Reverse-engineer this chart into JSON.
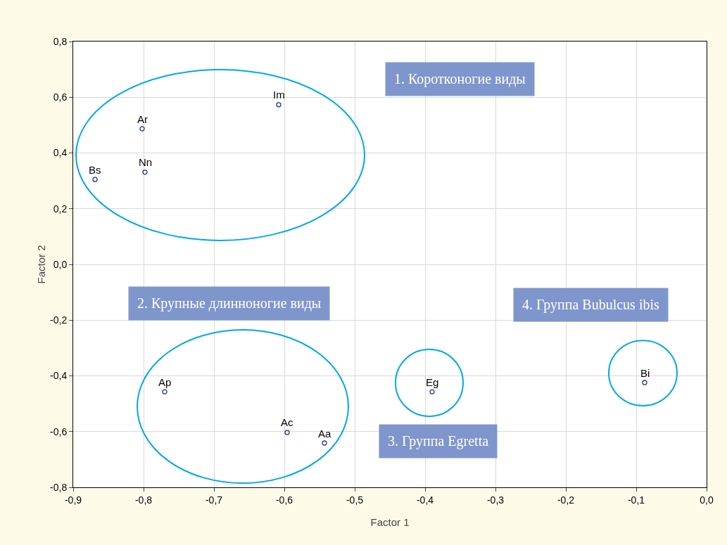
{
  "chart_data": {
    "type": "scatter",
    "xlabel": "Factor 1",
    "ylabel": "Factor 2",
    "series": [
      {
        "color": "#1f3c8c",
        "x": [
          -0.608,
          -0.802,
          -0.798,
          -0.869,
          -0.77,
          -0.596,
          -0.543,
          -0.39,
          -0.088
        ],
        "values": [
          0.573,
          0.487,
          0.331,
          0.305,
          -0.457,
          -0.603,
          -0.641,
          -0.457,
          -0.424
        ]
      }
    ],
    "marker": "circle",
    "grid": true,
    "xlim": [
      -0.9,
      0
    ],
    "ylim": [
      -0.8,
      0.8
    ],
    "xticks": [
      {
        "value": -0.9,
        "label": "-0,9"
      },
      {
        "value": -0.8,
        "label": "-0,8"
      },
      {
        "value": -0.7,
        "label": "-0,7"
      },
      {
        "value": -0.6,
        "label": "-0,6"
      },
      {
        "value": -0.5,
        "label": "-0,5"
      },
      {
        "value": -0.4,
        "label": "-0,4"
      },
      {
        "value": -0.3,
        "label": "-0,3"
      },
      {
        "value": -0.2,
        "label": "-0,2"
      },
      {
        "value": -0.1,
        "label": "-0,1"
      },
      {
        "value": 0,
        "label": "0,0"
      }
    ],
    "yticks": [
      {
        "value": -0.8,
        "label": "-0,8"
      },
      {
        "value": -0.6,
        "label": "-0,6"
      },
      {
        "value": -0.4,
        "label": "-0,4"
      },
      {
        "value": -0.2,
        "label": "-0,2"
      },
      {
        "value": 0,
        "label": "0,0"
      },
      {
        "value": 0.2,
        "label": "0,2"
      },
      {
        "value": 0.4,
        "label": "0,4"
      },
      {
        "value": 0.6,
        "label": "0,6"
      },
      {
        "value": 0.8,
        "label": "0,8"
      }
    ],
    "annotations": [
      {
        "text": "Im",
        "x": -0.608,
        "y": 0.573
      },
      {
        "text": "Ar",
        "x": -0.802,
        "y": 0.487
      },
      {
        "text": "Nn",
        "x": -0.798,
        "y": 0.331
      },
      {
        "text": "Bs",
        "x": -0.869,
        "y": 0.305
      },
      {
        "text": "Ap",
        "x": -0.77,
        "y": -0.457
      },
      {
        "text": "Ac",
        "x": -0.596,
        "y": -0.603
      },
      {
        "text": "Aa",
        "x": -0.543,
        "y": -0.641
      },
      {
        "text": "Eg",
        "x": -0.39,
        "y": -0.457
      },
      {
        "text": "Bi",
        "x": -0.088,
        "y": -0.424
      },
      "1. Коротконогие виды",
      "2. Крупные длинноногие виды",
      "3. Группа Egretta",
      "4. Группа Bubulcus ibis"
    ]
  }
}
